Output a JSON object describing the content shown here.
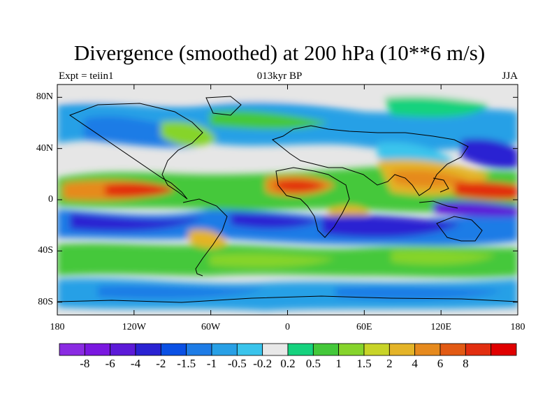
{
  "title": "Divergence (smoothed) at 200 hPa (10**6 m/s)",
  "subtitle_left": "Expt = teiin1",
  "subtitle_center": "013kyr BP",
  "subtitle_right": "JJA",
  "map": {
    "lon_range": [
      -180,
      180
    ],
    "lat_range": [
      -90,
      90
    ],
    "lat_ticks": [
      {
        "value": 80,
        "label": "80N"
      },
      {
        "value": 40,
        "label": "40N"
      },
      {
        "value": 0,
        "label": "0"
      },
      {
        "value": -40,
        "label": "40S"
      },
      {
        "value": -80,
        "label": "80S"
      }
    ],
    "lon_ticks": [
      {
        "value": -180,
        "label": "180"
      },
      {
        "value": -120,
        "label": "120W"
      },
      {
        "value": -60,
        "label": "60W"
      },
      {
        "value": 0,
        "label": "0"
      },
      {
        "value": 60,
        "label": "60E"
      },
      {
        "value": 120,
        "label": "120E"
      },
      {
        "value": 180,
        "label": "180"
      }
    ]
  },
  "colorbar": {
    "colors": [
      "#8a2be2",
      "#7a18e0",
      "#5c1ad8",
      "#2a22d2",
      "#0a50e4",
      "#1e7ce6",
      "#28a0e6",
      "#3ac4ec",
      "#e8e8e8",
      "#16d27e",
      "#44c83a",
      "#86d42c",
      "#c8d428",
      "#e4b428",
      "#e68a1e",
      "#e25a14",
      "#e22e10",
      "#e00000"
    ],
    "labels": [
      "-8",
      "-6",
      "-4",
      "-2",
      "-1.5",
      "-1",
      "-0.5",
      "-0.2",
      "0.2",
      "0.5",
      "1",
      "1.5",
      "2",
      "4",
      "6",
      "8"
    ]
  }
}
